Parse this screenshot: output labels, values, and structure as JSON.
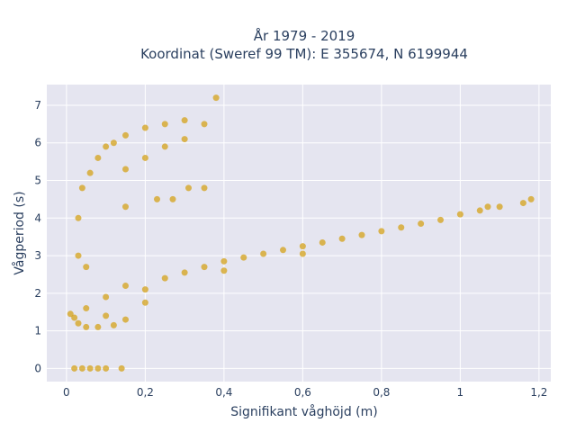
{
  "chart_data": {
    "type": "scatter",
    "title_lines": [
      "År 1979 - 2019",
      "Koordinat (Sweref 99 TM): E 355674, N 6199944"
    ],
    "xlabel": "Signifikant våghöjd (m)",
    "ylabel": "Vågperiod (s)",
    "xlim": [
      -0.05,
      1.23
    ],
    "ylim": [
      -0.35,
      7.55
    ],
    "x_ticks": [
      0,
      0.2,
      0.4,
      0.6,
      0.8,
      1,
      1.2
    ],
    "x_tick_labels": [
      "0",
      "0,2",
      "0,4",
      "0,6",
      "0,8",
      "1",
      "1,2"
    ],
    "y_ticks": [
      0,
      1,
      2,
      3,
      4,
      5,
      6,
      7
    ],
    "y_tick_labels": [
      "0",
      "1",
      "2",
      "3",
      "4",
      "5",
      "6",
      "7"
    ],
    "grid": true,
    "marker_color": "#d4a21a",
    "background_color": "#e5e5f0",
    "series": [
      {
        "values": [
          {
            "x": 0.02,
            "y": 0
          },
          {
            "x": 0.04,
            "y": 0
          },
          {
            "x": 0.06,
            "y": 0
          },
          {
            "x": 0.08,
            "y": 0
          },
          {
            "x": 0.1,
            "y": 0
          },
          {
            "x": 0.14,
            "y": 0
          },
          {
            "x": 0.01,
            "y": 1.45
          },
          {
            "x": 0.02,
            "y": 1.35
          },
          {
            "x": 0.03,
            "y": 1.2
          },
          {
            "x": 0.05,
            "y": 1.1
          },
          {
            "x": 0.08,
            "y": 1.1
          },
          {
            "x": 0.12,
            "y": 1.15
          },
          {
            "x": 0.15,
            "y": 1.3
          },
          {
            "x": 0.05,
            "y": 1.6
          },
          {
            "x": 0.1,
            "y": 1.9
          },
          {
            "x": 0.15,
            "y": 2.2
          },
          {
            "x": 0.2,
            "y": 2.1
          },
          {
            "x": 0.25,
            "y": 2.4
          },
          {
            "x": 0.3,
            "y": 2.55
          },
          {
            "x": 0.35,
            "y": 2.7
          },
          {
            "x": 0.4,
            "y": 2.85
          },
          {
            "x": 0.45,
            "y": 2.95
          },
          {
            "x": 0.5,
            "y": 3.05
          },
          {
            "x": 0.55,
            "y": 3.15
          },
          {
            "x": 0.6,
            "y": 3.25
          },
          {
            "x": 0.65,
            "y": 3.35
          },
          {
            "x": 0.7,
            "y": 3.45
          },
          {
            "x": 0.75,
            "y": 3.55
          },
          {
            "x": 0.8,
            "y": 3.65
          },
          {
            "x": 0.85,
            "y": 3.75
          },
          {
            "x": 0.9,
            "y": 3.85
          },
          {
            "x": 0.95,
            "y": 3.95
          },
          {
            "x": 1.0,
            "y": 4.1
          },
          {
            "x": 1.05,
            "y": 4.2
          },
          {
            "x": 1.1,
            "y": 4.3
          },
          {
            "x": 1.16,
            "y": 4.4
          },
          {
            "x": 1.18,
            "y": 4.5
          },
          {
            "x": 1.07,
            "y": 4.3
          },
          {
            "x": 0.6,
            "y": 3.05
          },
          {
            "x": 0.4,
            "y": 2.6
          },
          {
            "x": 0.2,
            "y": 1.75
          },
          {
            "x": 0.1,
            "y": 1.4
          },
          {
            "x": 0.03,
            "y": 3.0
          },
          {
            "x": 0.03,
            "y": 4.0
          },
          {
            "x": 0.04,
            "y": 4.8
          },
          {
            "x": 0.05,
            "y": 2.7
          },
          {
            "x": 0.06,
            "y": 5.2
          },
          {
            "x": 0.08,
            "y": 5.6
          },
          {
            "x": 0.1,
            "y": 5.9
          },
          {
            "x": 0.12,
            "y": 6.0
          },
          {
            "x": 0.15,
            "y": 6.2
          },
          {
            "x": 0.2,
            "y": 6.4
          },
          {
            "x": 0.25,
            "y": 6.5
          },
          {
            "x": 0.3,
            "y": 6.6
          },
          {
            "x": 0.35,
            "y": 6.5
          },
          {
            "x": 0.38,
            "y": 7.2
          },
          {
            "x": 0.15,
            "y": 5.3
          },
          {
            "x": 0.2,
            "y": 5.6
          },
          {
            "x": 0.25,
            "y": 5.9
          },
          {
            "x": 0.3,
            "y": 6.1
          },
          {
            "x": 0.23,
            "y": 4.5
          },
          {
            "x": 0.27,
            "y": 4.5
          },
          {
            "x": 0.31,
            "y": 4.8
          },
          {
            "x": 0.35,
            "y": 4.8
          },
          {
            "x": 0.15,
            "y": 4.3
          }
        ]
      }
    ]
  }
}
